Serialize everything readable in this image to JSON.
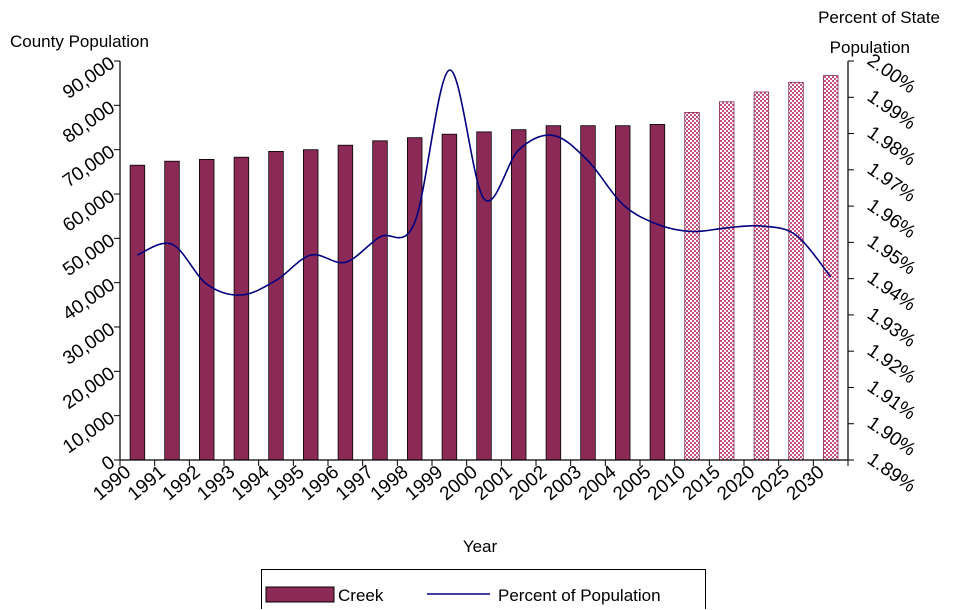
{
  "chart_data": {
    "type": "bar",
    "x_title": "Year",
    "y_left_title": "County Population",
    "y_right_title_line1": "Percent of State",
    "y_right_title_line2": "Population",
    "categories": [
      "1990",
      "1991",
      "1992",
      "1993",
      "1994",
      "1995",
      "1996",
      "1997",
      "1998",
      "1999",
      "2000",
      "2001",
      "2002",
      "2003",
      "2004",
      "2005",
      "2010",
      "2015",
      "2020",
      "2025",
      "2030"
    ],
    "y_left": {
      "min": 0,
      "max": 90000,
      "ticks": [
        "0",
        "10,000",
        "20,000",
        "30,000",
        "40,000",
        "50,000",
        "60,000",
        "70,000",
        "80,000",
        "90,000"
      ]
    },
    "y_right": {
      "min": 1.89,
      "max": 2.0,
      "ticks": [
        "1.89%",
        "1.90%",
        "1.91%",
        "1.92%",
        "1.93%",
        "1.94%",
        "1.95%",
        "1.96%",
        "1.97%",
        "1.98%",
        "1.99%",
        "2.00%"
      ]
    },
    "series": [
      {
        "name": "Creek",
        "type": "bar",
        "axis": "left",
        "color": "#8B2A57",
        "projected_color": "#e8a8bf",
        "projected_from_index": 16,
        "values": [
          66500,
          67400,
          67800,
          68300,
          69600,
          70000,
          71000,
          72000,
          72700,
          73500,
          74000,
          74500,
          75400,
          75400,
          75400,
          75700,
          78400,
          80800,
          83000,
          85200,
          86700
        ]
      },
      {
        "name": "Percent of Population",
        "type": "line",
        "axis": "right",
        "color": "#000080",
        "values": [
          1.9465,
          1.9495,
          1.9385,
          1.9355,
          1.9395,
          1.9465,
          1.9445,
          1.9515,
          1.9555,
          1.9975,
          1.962,
          1.9755,
          1.9795,
          1.9725,
          1.9605,
          1.955,
          1.953,
          1.954,
          1.9545,
          1.952,
          1.9405
        ]
      }
    ],
    "legend": {
      "position": "bottom",
      "items": [
        "Creek",
        "Percent of Population"
      ]
    }
  }
}
